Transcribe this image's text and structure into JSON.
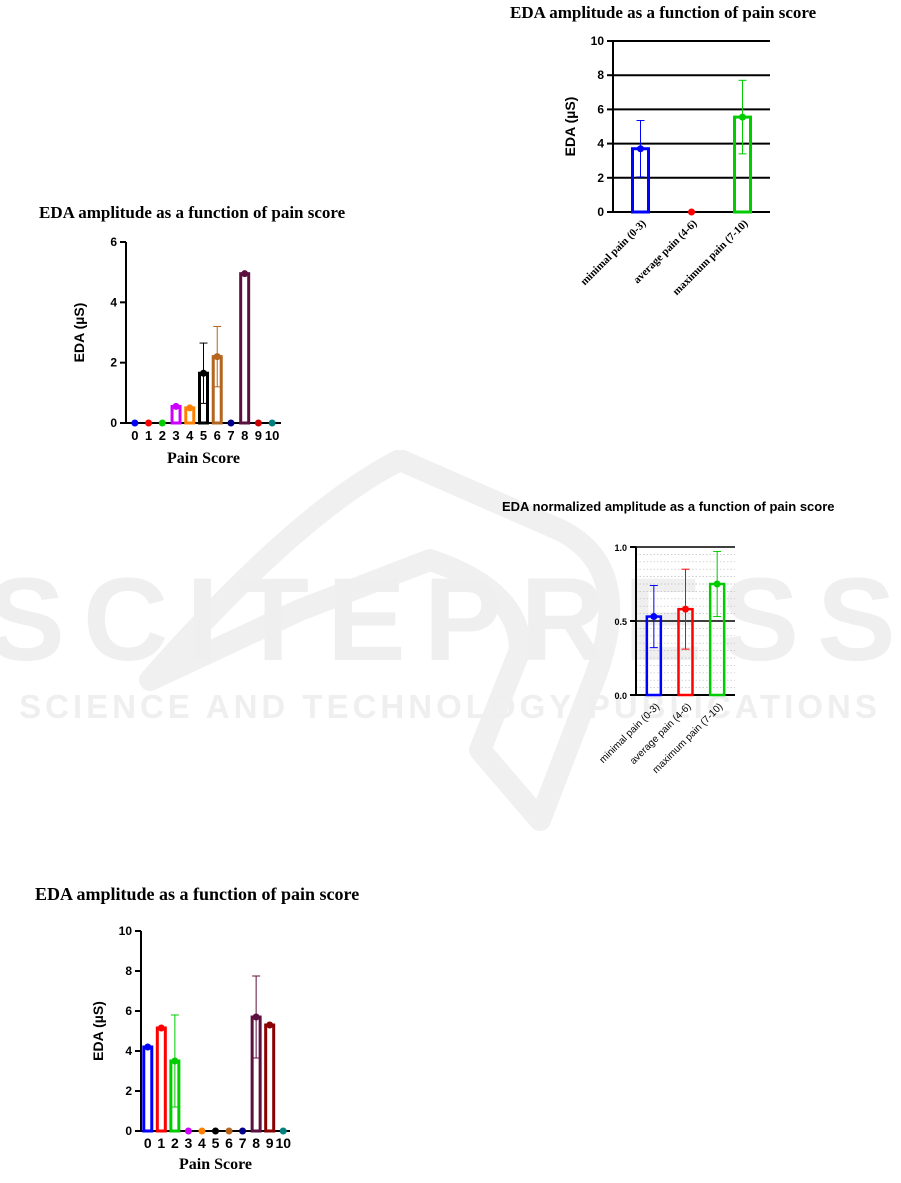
{
  "chart_data": [
    {
      "id": "chart-a",
      "type": "bar",
      "title": "EDA amplitude as a function of pain score",
      "xlabel": "Pain Score",
      "ylabel": "EDA (µS)",
      "ylim": [
        0,
        6
      ],
      "yticks": [
        0,
        2,
        4,
        6
      ],
      "grid": false,
      "categories": [
        "0",
        "1",
        "2",
        "3",
        "4",
        "5",
        "6",
        "7",
        "8",
        "9",
        "10"
      ],
      "values": [
        0,
        0,
        0,
        0.55,
        0.5,
        1.65,
        2.2,
        0,
        4.95,
        0,
        0
      ],
      "error": [
        0,
        0,
        0,
        0,
        0,
        1.0,
        1.0,
        0,
        0,
        0,
        0
      ],
      "colors": [
        "#0000ff",
        "#ff0000",
        "#00cc00",
        "#cc00ff",
        "#ff8000",
        "#000000",
        "#b5651d",
        "#00008b",
        "#5c1040",
        "#cc0000",
        "#008080"
      ]
    },
    {
      "id": "chart-b",
      "type": "bar",
      "title": "EDA amplitude as a function of pain score",
      "xlabel": "",
      "ylabel": "EDA (µS)",
      "ylim": [
        0,
        10
      ],
      "yticks": [
        0,
        2,
        4,
        6,
        8,
        10
      ],
      "grid": true,
      "categories": [
        "minimal pain (0-3)",
        "average pain (4-6)",
        "maximum pain (7-10)"
      ],
      "values": [
        3.7,
        0,
        5.55
      ],
      "error": [
        1.65,
        0,
        2.15
      ],
      "colors": [
        "#0000ff",
        "#ff0000",
        "#00cc00"
      ]
    },
    {
      "id": "chart-c",
      "type": "bar",
      "title": "EDA normalized amplitude as a function of pain score",
      "xlabel": "",
      "ylabel": "",
      "ylim": [
        0,
        1
      ],
      "yticks": [
        0.0,
        0.5,
        1.0
      ],
      "ytick_labels": [
        "0.0",
        "0.5",
        "1.0"
      ],
      "grid": true,
      "categories": [
        "minimal pain (0-3)",
        "average pain (4-6)",
        "maximum pain (7-10)"
      ],
      "values": [
        0.53,
        0.58,
        0.75
      ],
      "error": [
        0.21,
        0.27,
        0.22
      ],
      "colors": [
        "#0000ff",
        "#ff0000",
        "#00cc00"
      ]
    },
    {
      "id": "chart-d",
      "type": "bar",
      "title": "EDA amplitude as a function of pain score",
      "xlabel": "Pain Score",
      "ylabel": "EDA (µS)",
      "ylim": [
        0,
        10
      ],
      "yticks": [
        0,
        2,
        4,
        6,
        8,
        10
      ],
      "grid": false,
      "categories": [
        "0",
        "1",
        "2",
        "3",
        "4",
        "5",
        "6",
        "7",
        "8",
        "9",
        "10"
      ],
      "values": [
        4.2,
        5.15,
        3.5,
        0,
        0,
        0,
        0,
        0,
        5.7,
        5.3,
        0
      ],
      "error": [
        0,
        0,
        2.3,
        0,
        0,
        0,
        0,
        0,
        2.05,
        0,
        0
      ],
      "colors": [
        "#0000ff",
        "#ff0000",
        "#00cc00",
        "#cc00ff",
        "#ff8000",
        "#000000",
        "#b5651d",
        "#00008b",
        "#5c1040",
        "#8b0000",
        "#008080"
      ]
    }
  ],
  "watermark": {
    "line1": "SCITEPRESS",
    "line2": "SCIENCE AND TECHNOLOGY PUBLICATIONS"
  }
}
